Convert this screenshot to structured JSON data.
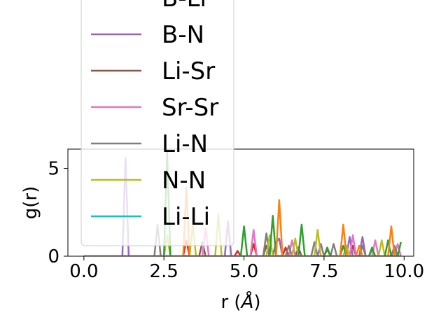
{
  "chart_data": {
    "type": "line",
    "xlabel": "r ($\\AA$)",
    "ylabel": "g(r)",
    "xlim": [
      -0.5,
      10.3
    ],
    "ylim": [
      0,
      6.1
    ],
    "x_ticks": [
      0.0,
      2.5,
      5.0,
      7.5,
      10.0
    ],
    "x_tick_labels": [
      "0.0",
      "2.5",
      "5.0",
      "7.5",
      "10.0"
    ],
    "y_ticks": [
      0,
      5
    ],
    "y_tick_labels": [
      "0",
      "5"
    ],
    "legend_placement": "top-left",
    "grid": false,
    "series": [
      {
        "name": "B-Li",
        "color": "#d62728",
        "points": [
          [
            0,
            0
          ],
          [
            3.1,
            0
          ],
          [
            3.2,
            0.9
          ],
          [
            3.3,
            0
          ],
          [
            4.7,
            0
          ],
          [
            4.8,
            0.3
          ],
          [
            4.9,
            0
          ],
          [
            5.2,
            0
          ],
          [
            5.3,
            0.7
          ],
          [
            5.4,
            0
          ],
          [
            6.2,
            0
          ],
          [
            6.3,
            0.5
          ],
          [
            6.4,
            0
          ],
          [
            7.5,
            0
          ],
          [
            7.6,
            0.4
          ],
          [
            7.7,
            0
          ],
          [
            8.3,
            0
          ],
          [
            8.4,
            0.6
          ],
          [
            8.5,
            0
          ],
          [
            9.6,
            0
          ],
          [
            9.7,
            0.5
          ],
          [
            9.8,
            0
          ],
          [
            9.9,
            0
          ]
        ]
      },
      {
        "name": "B-N",
        "color": "#9467bd",
        "points": [
          [
            0,
            0
          ],
          [
            1.2,
            0
          ],
          [
            1.3,
            5.6
          ],
          [
            1.4,
            0
          ],
          [
            4.4,
            0
          ],
          [
            4.5,
            2.0
          ],
          [
            4.6,
            0
          ],
          [
            5.9,
            0
          ],
          [
            6.0,
            0.8
          ],
          [
            6.1,
            1.0
          ],
          [
            6.2,
            0
          ],
          [
            7.3,
            0
          ],
          [
            7.4,
            0.7
          ],
          [
            7.5,
            0
          ],
          [
            8.2,
            0
          ],
          [
            8.3,
            1.1
          ],
          [
            8.4,
            0
          ],
          [
            8.6,
            0
          ],
          [
            8.7,
            1.1
          ],
          [
            8.8,
            0
          ],
          [
            9.9,
            0
          ]
        ]
      },
      {
        "name": "Li-Sr",
        "color": "#8c564b",
        "points": [
          [
            0,
            0
          ],
          [
            3.6,
            0
          ],
          [
            3.7,
            0.8
          ],
          [
            3.8,
            0
          ],
          [
            5.6,
            0
          ],
          [
            5.7,
            0.6
          ],
          [
            5.8,
            0
          ],
          [
            6.6,
            0
          ],
          [
            6.7,
            0.5
          ],
          [
            6.8,
            0
          ],
          [
            8.9,
            0
          ],
          [
            9.0,
            0.4
          ],
          [
            9.1,
            0
          ],
          [
            9.9,
            0
          ]
        ]
      },
      {
        "name": "Sr-Sr",
        "color": "#e377c2",
        "points": [
          [
            0,
            0
          ],
          [
            3.7,
            0
          ],
          [
            3.8,
            1.6
          ],
          [
            3.9,
            0
          ],
          [
            5.2,
            0
          ],
          [
            5.3,
            1.5
          ],
          [
            5.4,
            0
          ],
          [
            6.4,
            0
          ],
          [
            6.5,
            0.9
          ],
          [
            6.6,
            0
          ],
          [
            8.3,
            0
          ],
          [
            8.4,
            1.2
          ],
          [
            8.5,
            0
          ],
          [
            9.0,
            0
          ],
          [
            9.1,
            0.9
          ],
          [
            9.2,
            0
          ],
          [
            9.7,
            0
          ],
          [
            9.8,
            0.7
          ],
          [
            9.9,
            0
          ]
        ]
      },
      {
        "name": "Li-N",
        "color": "#7f7f7f",
        "points": [
          [
            0,
            0
          ],
          [
            2.2,
            0
          ],
          [
            2.3,
            1.8
          ],
          [
            2.4,
            0
          ],
          [
            5.6,
            0
          ],
          [
            5.7,
            1.3
          ],
          [
            5.8,
            0
          ],
          [
            6.3,
            0
          ],
          [
            6.4,
            0.6
          ],
          [
            6.5,
            0
          ],
          [
            7.1,
            0
          ],
          [
            7.2,
            0.8
          ],
          [
            7.3,
            0
          ],
          [
            7.7,
            0
          ],
          [
            7.8,
            0.7
          ],
          [
            7.9,
            0
          ],
          [
            8.6,
            0
          ],
          [
            8.7,
            0.6
          ],
          [
            8.8,
            0
          ],
          [
            9.6,
            0
          ],
          [
            9.7,
            0.6
          ],
          [
            9.8,
            0
          ],
          [
            9.9,
            0
          ]
        ]
      },
      {
        "name": "N-N",
        "color": "#bcbd22",
        "points": [
          [
            0,
            0
          ],
          [
            2.5,
            0
          ],
          [
            2.6,
            1.2
          ],
          [
            2.7,
            0
          ],
          [
            3.3,
            0
          ],
          [
            3.4,
            1.8
          ],
          [
            3.5,
            0
          ],
          [
            4.1,
            0
          ],
          [
            4.2,
            2.4
          ],
          [
            4.3,
            0
          ],
          [
            5.7,
            0
          ],
          [
            5.8,
            1.2
          ],
          [
            5.9,
            0
          ],
          [
            6.5,
            0
          ],
          [
            6.6,
            1.0
          ],
          [
            6.7,
            0
          ],
          [
            7.2,
            0
          ],
          [
            7.3,
            1.5
          ],
          [
            7.4,
            0
          ],
          [
            8.1,
            0
          ],
          [
            8.2,
            0.6
          ],
          [
            8.3,
            0
          ],
          [
            9.2,
            0
          ],
          [
            9.3,
            0.9
          ],
          [
            9.4,
            0
          ],
          [
            9.9,
            0
          ]
        ]
      },
      {
        "name": "Li-Li",
        "color": "#17becf",
        "points": [
          [
            0,
            0
          ],
          [
            9.9,
            0
          ]
        ]
      },
      {
        "name": "",
        "color": "#2ca02c",
        "points": [
          [
            0,
            0
          ],
          [
            2.5,
            0
          ],
          [
            2.6,
            5.9
          ],
          [
            2.7,
            0
          ],
          [
            4.9,
            0
          ],
          [
            5.0,
            1.7
          ],
          [
            5.1,
            0
          ],
          [
            5.8,
            0
          ],
          [
            5.9,
            2.3
          ],
          [
            6.0,
            0
          ],
          [
            6.7,
            0
          ],
          [
            6.8,
            1.8
          ],
          [
            6.9,
            0
          ],
          [
            7.5,
            0
          ],
          [
            7.6,
            0.5
          ],
          [
            7.7,
            0
          ],
          [
            8.0,
            0
          ],
          [
            8.1,
            0.6
          ],
          [
            8.2,
            0
          ],
          [
            8.9,
            0
          ],
          [
            9.0,
            0.5
          ],
          [
            9.1,
            0
          ],
          [
            9.4,
            0
          ],
          [
            9.5,
            0.9
          ],
          [
            9.6,
            0
          ],
          [
            9.8,
            0
          ],
          [
            9.9,
            0.8
          ]
        ]
      },
      {
        "name": "",
        "color": "#ff7f0e",
        "points": [
          [
            0,
            0
          ],
          [
            3.1,
            0
          ],
          [
            3.2,
            3.9
          ],
          [
            3.3,
            0
          ],
          [
            6.0,
            0
          ],
          [
            6.1,
            3.2
          ],
          [
            6.2,
            0
          ],
          [
            8.0,
            0
          ],
          [
            8.1,
            1.8
          ],
          [
            8.2,
            0
          ],
          [
            8.5,
            0
          ],
          [
            8.6,
            0.6
          ],
          [
            8.7,
            0
          ],
          [
            9.5,
            0
          ],
          [
            9.6,
            1.7
          ],
          [
            9.7,
            0
          ],
          [
            9.9,
            0
          ]
        ]
      }
    ]
  }
}
